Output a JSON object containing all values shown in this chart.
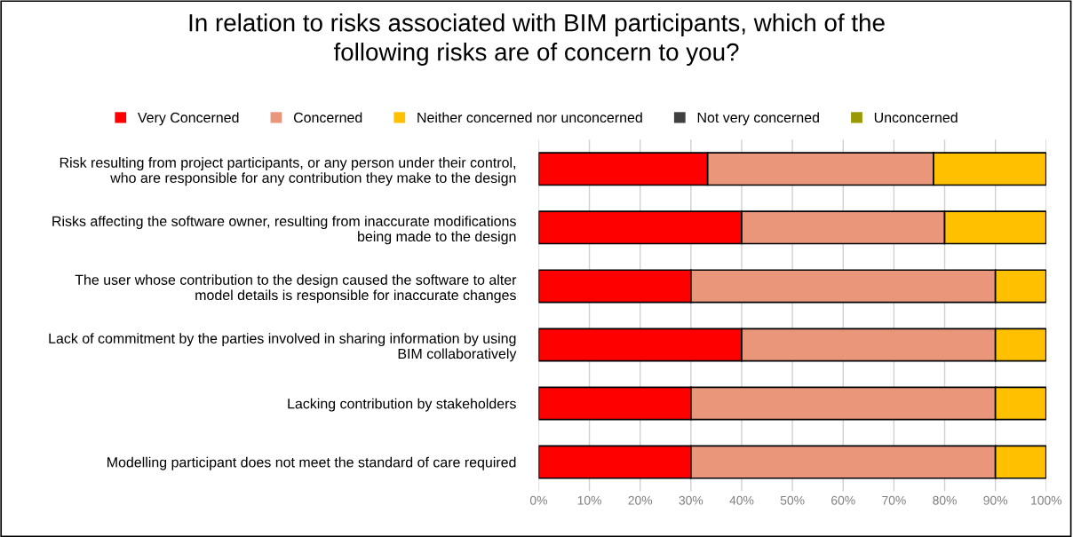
{
  "chart_data": {
    "type": "bar",
    "orientation": "horizontal",
    "stacked": true,
    "title": "In relation to risks associated with BIM participants, which of the\nfollowing risks are of concern to you?",
    "categories": [
      "Risk resulting from project participants, or any person under their control,\nwho are responsible for any contribution they make to the design",
      "Risks affecting the software owner, resulting from inaccurate modifications\nbeing made to the design",
      "The user whose contribution to the design caused the software to alter\nmodel details is responsible for inaccurate changes",
      "Lack of commitment by the parties involved in sharing information by using\nBIM collaboratively",
      "Lacking contribution by stakeholders",
      "Modelling participant does not meet the standard of care required"
    ],
    "series": [
      {
        "name": "Very Concerned",
        "color": "#ff0000",
        "values": [
          33.3,
          40,
          30,
          40,
          30,
          30
        ]
      },
      {
        "name": "Concerned",
        "color": "#e9967a",
        "values": [
          44.5,
          40,
          60,
          50,
          60,
          60
        ]
      },
      {
        "name": "Neither concerned nor unconcerned",
        "color": "#ffc000",
        "values": [
          22.2,
          20,
          10,
          10,
          10,
          10
        ]
      },
      {
        "name": "Not very concerned",
        "color": "#404040",
        "values": [
          0,
          0,
          0,
          0,
          0,
          0
        ]
      },
      {
        "name": "Unconcerned",
        "color": "#999900",
        "values": [
          0,
          0,
          0,
          0,
          0,
          0
        ]
      }
    ],
    "xlim": [
      0,
      100
    ],
    "xticks": [
      {
        "value": 0,
        "label": "0%"
      },
      {
        "value": 10,
        "label": "10%"
      },
      {
        "value": 20,
        "label": "20%"
      },
      {
        "value": 30,
        "label": "30%"
      },
      {
        "value": 40,
        "label": "40%"
      },
      {
        "value": 50,
        "label": "50%"
      },
      {
        "value": 60,
        "label": "60%"
      },
      {
        "value": 70,
        "label": "70%"
      },
      {
        "value": 80,
        "label": "80%"
      },
      {
        "value": 90,
        "label": "90%"
      },
      {
        "value": 100,
        "label": "100%"
      }
    ],
    "grid": "x",
    "legend": "top"
  }
}
